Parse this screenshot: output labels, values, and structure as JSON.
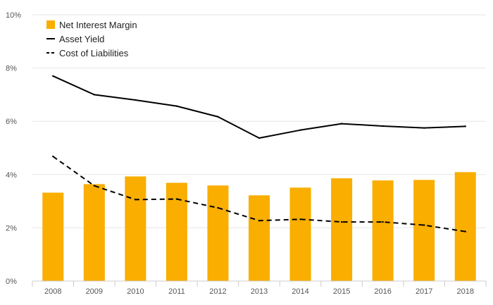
{
  "chart_data": {
    "type": "bar",
    "categories": [
      "2008",
      "2009",
      "2010",
      "2011",
      "2012",
      "2013",
      "2014",
      "2015",
      "2016",
      "2017",
      "2018"
    ],
    "series": [
      {
        "name": "Net Interest Margin",
        "type": "bar",
        "color": "#f9ae00",
        "values": [
          3.32,
          3.64,
          3.93,
          3.69,
          3.59,
          3.22,
          3.51,
          3.86,
          3.78,
          3.8,
          4.09
        ]
      },
      {
        "name": "Asset Yield",
        "type": "line",
        "style": "solid",
        "color": "#000000",
        "values": [
          7.7,
          7.0,
          6.8,
          6.57,
          6.17,
          5.37,
          5.67,
          5.91,
          5.82,
          5.75,
          5.81
        ]
      },
      {
        "name": "Cost of Liabilities",
        "type": "line",
        "style": "dashed",
        "color": "#000000",
        "values": [
          4.68,
          3.58,
          3.06,
          3.08,
          2.75,
          2.27,
          2.32,
          2.22,
          2.22,
          2.1,
          1.86
        ]
      }
    ],
    "y_ticks": [
      "0%",
      "2%",
      "4%",
      "6%",
      "8%",
      "10%"
    ],
    "ylim": [
      0,
      10
    ],
    "grid": true,
    "legend": "top-left",
    "title": "",
    "xlabel": "",
    "ylabel": ""
  }
}
